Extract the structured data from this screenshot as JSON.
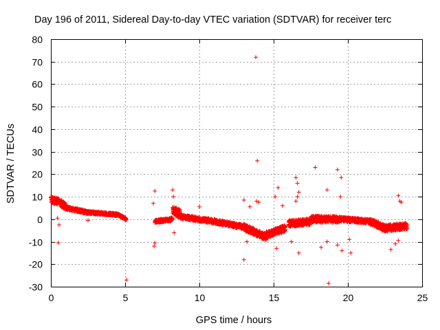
{
  "chart_data": {
    "type": "scatter",
    "title": "Day 196 of 2011, Sidereal Day-to-day VTEC variation (SDTVAR) for receiver terc",
    "xlabel": "GPS time / hours",
    "ylabel": "SDTVAR / TECUs",
    "xlim": [
      0,
      25
    ],
    "ylim": [
      -30,
      80
    ],
    "xticks": [
      0,
      5,
      10,
      15,
      20,
      25
    ],
    "yticks": [
      -30,
      -20,
      -10,
      0,
      10,
      20,
      30,
      40,
      50,
      60,
      70,
      80
    ],
    "xtick_labels": [
      "0",
      "5",
      "10",
      "15",
      "20",
      "25"
    ],
    "ytick_labels": [
      "-30",
      "-20",
      "-10",
      "0",
      "10",
      "20",
      "30",
      "40",
      "50",
      "60",
      "70",
      "80"
    ],
    "grid": true,
    "marker": "+",
    "color": "#ff0000",
    "series": [
      {
        "name": "SDTVAR",
        "segments": [
          {
            "from": 0.0,
            "to": 0.5,
            "start": 8.5,
            "end": 8.0,
            "spread": 3.0
          },
          {
            "from": 0.5,
            "to": 1.0,
            "start": 8.0,
            "end": 5.5,
            "spread": 3.0
          },
          {
            "from": 1.0,
            "to": 2.5,
            "start": 5.0,
            "end": 3.0,
            "spread": 1.5
          },
          {
            "from": 2.5,
            "to": 4.5,
            "start": 3.0,
            "end": 2.0,
            "spread": 1.2
          },
          {
            "from": 4.5,
            "to": 5.1,
            "start": 2.0,
            "end": 0.0,
            "spread": 1.0
          },
          {
            "from": 7.0,
            "to": 8.2,
            "start": -1.0,
            "end": 0.0,
            "spread": 1.5
          },
          {
            "from": 8.2,
            "to": 8.8,
            "start": 4.0,
            "end": 2.0,
            "spread": 4.0
          },
          {
            "from": 8.8,
            "to": 11.0,
            "start": 1.0,
            "end": -1.0,
            "spread": 2.0
          },
          {
            "from": 11.0,
            "to": 13.0,
            "start": -1.0,
            "end": -3.5,
            "spread": 2.0
          },
          {
            "from": 13.0,
            "to": 14.5,
            "start": -3.5,
            "end": -8.0,
            "spread": 3.0
          },
          {
            "from": 14.5,
            "to": 15.8,
            "start": -7.0,
            "end": -4.0,
            "spread": 3.0
          },
          {
            "from": 16.0,
            "to": 17.5,
            "start": -2.0,
            "end": -1.0,
            "spread": 3.0
          },
          {
            "from": 17.5,
            "to": 19.5,
            "start": 0.0,
            "end": 0.0,
            "spread": 3.0
          },
          {
            "from": 19.5,
            "to": 21.5,
            "start": 0.0,
            "end": -1.0,
            "spread": 2.0
          },
          {
            "from": 21.5,
            "to": 22.5,
            "start": -1.0,
            "end": -4.0,
            "spread": 3.0
          },
          {
            "from": 22.5,
            "to": 24.0,
            "start": -4.0,
            "end": -3.0,
            "spread": 3.0
          }
        ],
        "outliers": [
          [
            0.5,
            -10.5
          ],
          [
            0.55,
            -2.5
          ],
          [
            0.45,
            0.5
          ],
          [
            2.5,
            -0.5
          ],
          [
            5.1,
            -27.0
          ],
          [
            6.9,
            7.0
          ],
          [
            7.0,
            12.5
          ],
          [
            7.0,
            -10.5
          ],
          [
            6.95,
            -12.0
          ],
          [
            8.2,
            13.0
          ],
          [
            8.25,
            10.0
          ],
          [
            8.3,
            -6.0
          ],
          [
            10.0,
            5.5
          ],
          [
            13.0,
            8.5
          ],
          [
            13.0,
            -18.0
          ],
          [
            13.2,
            -10.0
          ],
          [
            13.4,
            5.5
          ],
          [
            13.8,
            72.0
          ],
          [
            13.9,
            26.0
          ],
          [
            13.85,
            8.0
          ],
          [
            14.0,
            7.5
          ],
          [
            15.2,
            -13.0
          ],
          [
            15.3,
            14.0
          ],
          [
            15.1,
            10.0
          ],
          [
            15.6,
            6.0
          ],
          [
            16.5,
            18.5
          ],
          [
            16.6,
            16.0
          ],
          [
            16.7,
            12.0
          ],
          [
            16.6,
            10.0
          ],
          [
            16.5,
            8.0
          ],
          [
            16.7,
            -15.0
          ],
          [
            16.2,
            -10.0
          ],
          [
            17.8,
            23.0
          ],
          [
            18.2,
            -12.5
          ],
          [
            18.6,
            -10.0
          ],
          [
            18.7,
            -28.5
          ],
          [
            18.6,
            13.0
          ],
          [
            19.3,
            22.0
          ],
          [
            19.55,
            18.5
          ],
          [
            19.5,
            10.0
          ],
          [
            19.3,
            -11.5
          ],
          [
            19.6,
            -14.0
          ],
          [
            20.2,
            -15.0
          ],
          [
            20.1,
            -9.0
          ],
          [
            22.9,
            -13.5
          ],
          [
            23.2,
            -11.0
          ],
          [
            23.4,
            10.5
          ],
          [
            23.5,
            8.0
          ],
          [
            23.6,
            7.5
          ],
          [
            23.4,
            -9.5
          ]
        ]
      }
    ]
  }
}
